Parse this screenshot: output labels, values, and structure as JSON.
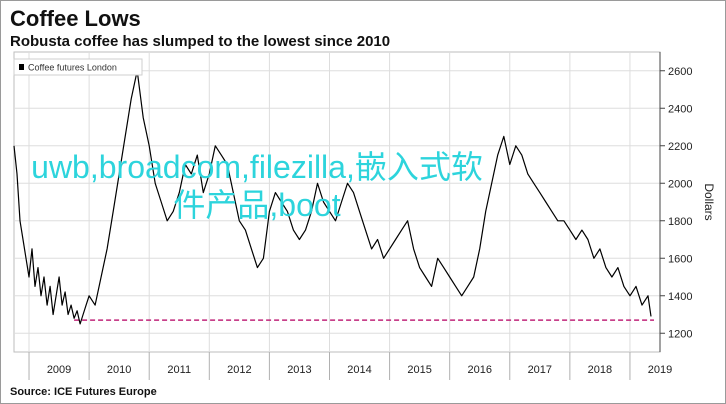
{
  "title": "Coffee Lows",
  "subtitle": "Robusta coffee has slumped to the lowest since 2010",
  "source": "Source: ICE Futures Europe",
  "overlay_text": "uwb,broadcom,filezilla,嵌入式软件产品,boot",
  "chart_data": {
    "type": "line",
    "title": "Coffee Lows",
    "subtitle": "Robusta coffee has slumped to the lowest since 2010",
    "legend": [
      "Coffee futures London"
    ],
    "legend_position": "top-left",
    "ylabel": "Dollars",
    "ylim": [
      1100,
      2700
    ],
    "y_ticks": [
      1200,
      1400,
      1600,
      1800,
      2000,
      2200,
      2400,
      2600
    ],
    "x_ticks": [
      "2009",
      "2010",
      "2011",
      "2012",
      "2013",
      "2014",
      "2015",
      "2016",
      "2017",
      "2018",
      "2019"
    ],
    "xlim": [
      2008.75,
      2019.5
    ],
    "grid": true,
    "y_axis_side": "right",
    "reference_line": {
      "y": 1270,
      "style": "dashed",
      "color": "#c0267a",
      "x_start": 2009.75,
      "x_end": 2019.4
    },
    "series": [
      {
        "name": "Coffee futures London",
        "color": "#000000",
        "x": [
          2008.75,
          2008.8,
          2008.85,
          2008.9,
          2008.95,
          2009.0,
          2009.05,
          2009.1,
          2009.15,
          2009.2,
          2009.25,
          2009.3,
          2009.35,
          2009.4,
          2009.45,
          2009.5,
          2009.55,
          2009.6,
          2009.65,
          2009.7,
          2009.75,
          2009.8,
          2009.85,
          2009.9,
          2009.95,
          2010.0,
          2010.1,
          2010.2,
          2010.3,
          2010.4,
          2010.5,
          2010.6,
          2010.7,
          2010.8,
          2010.9,
          2011.0,
          2011.1,
          2011.2,
          2011.3,
          2011.4,
          2011.5,
          2011.6,
          2011.7,
          2011.8,
          2011.9,
          2012.0,
          2012.1,
          2012.2,
          2012.3,
          2012.4,
          2012.5,
          2012.6,
          2012.7,
          2012.8,
          2012.9,
          2013.0,
          2013.1,
          2013.2,
          2013.3,
          2013.4,
          2013.5,
          2013.6,
          2013.7,
          2013.8,
          2013.9,
          2014.0,
          2014.1,
          2014.2,
          2014.3,
          2014.4,
          2014.5,
          2014.6,
          2014.7,
          2014.8,
          2014.9,
          2015.0,
          2015.1,
          2015.2,
          2015.3,
          2015.4,
          2015.5,
          2015.6,
          2015.7,
          2015.8,
          2015.9,
          2016.0,
          2016.1,
          2016.2,
          2016.3,
          2016.4,
          2016.5,
          2016.6,
          2016.7,
          2016.8,
          2016.9,
          2017.0,
          2017.1,
          2017.2,
          2017.3,
          2017.4,
          2017.5,
          2017.6,
          2017.7,
          2017.8,
          2017.9,
          2018.0,
          2018.1,
          2018.2,
          2018.3,
          2018.4,
          2018.5,
          2018.6,
          2018.7,
          2018.8,
          2018.9,
          2019.0,
          2019.1,
          2019.2,
          2019.3,
          2019.35
        ],
        "y": [
          2200,
          2050,
          1800,
          1700,
          1600,
          1500,
          1650,
          1450,
          1550,
          1400,
          1500,
          1350,
          1450,
          1300,
          1400,
          1500,
          1350,
          1420,
          1300,
          1350,
          1280,
          1320,
          1250,
          1300,
          1350,
          1400,
          1350,
          1500,
          1650,
          1850,
          2050,
          2250,
          2450,
          2600,
          2350,
          2200,
          2000,
          1900,
          1800,
          1850,
          1950,
          2100,
          2050,
          2150,
          1950,
          2050,
          2200,
          2150,
          2100,
          1950,
          1800,
          1750,
          1650,
          1550,
          1600,
          1850,
          1950,
          1900,
          1850,
          1750,
          1700,
          1750,
          1850,
          2000,
          1900,
          1850,
          1800,
          1900,
          2000,
          1950,
          1850,
          1750,
          1650,
          1700,
          1600,
          1650,
          1700,
          1750,
          1800,
          1650,
          1550,
          1500,
          1450,
          1600,
          1550,
          1500,
          1450,
          1400,
          1450,
          1500,
          1650,
          1850,
          2000,
          2150,
          2250,
          2100,
          2200,
          2150,
          2050,
          2000,
          1950,
          1900,
          1850,
          1800,
          1800,
          1750,
          1700,
          1750,
          1700,
          1600,
          1650,
          1550,
          1500,
          1550,
          1450,
          1400,
          1450,
          1350,
          1400,
          1290
        ]
      }
    ]
  }
}
